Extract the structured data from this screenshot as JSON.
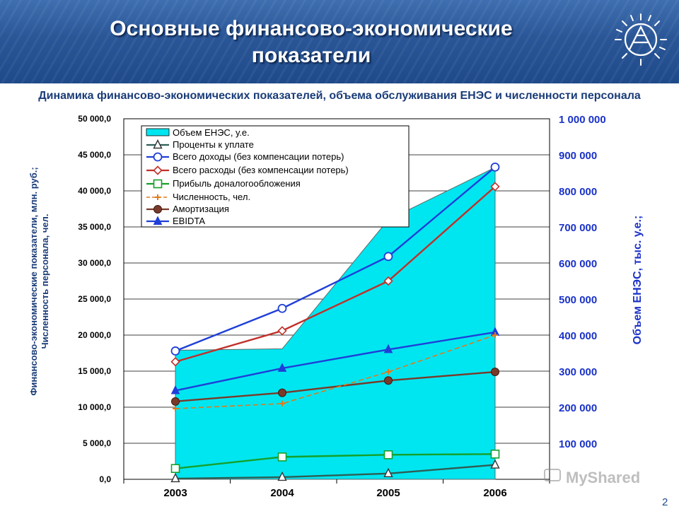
{
  "slide": {
    "title_line1": "Основные финансово-экономические",
    "title_line2": "показатели",
    "page_number": "2"
  },
  "watermark": "MyShared",
  "chart_data": {
    "type": "line",
    "title": "Динамика финансово-экономических показателей, объема обслуживания ЕНЭС и численности персонала",
    "categories": [
      "2003",
      "2004",
      "2005",
      "2006"
    ],
    "ylabel": [
      "Финансово-экономические показатели, млн. руб.;",
      "Численность персонала, чел."
    ],
    "ylabel2": "Объем ЕНЭС, тыс. у.е.;",
    "ylim": [
      0,
      50000
    ],
    "ylim2": [
      0,
      1000000
    ],
    "yticks": [
      "0,0",
      "5 000,0",
      "10 000,0",
      "15 000,0",
      "20 000,0",
      "25 000,0",
      "30 000,0",
      "35 000,0",
      "40 000,0",
      "45 000,0",
      "50 000,0"
    ],
    "yticks2": [
      "100 000",
      "200 000",
      "300 000",
      "400 000",
      "500 000",
      "600 000",
      "700 000",
      "800 000",
      "900 000",
      "1 000 000"
    ],
    "grid": true,
    "legend_position": "top-left",
    "area": {
      "name": "Объем ЕНЭС, у.е.",
      "axis": "right",
      "color": "#00e6f0",
      "values": [
        358000,
        362000,
        720000,
        865000
      ]
    },
    "series": [
      {
        "name": "Проценты к уплате",
        "color": "#2e5e55",
        "marker": "triangle-open",
        "values": [
          100,
          300,
          800,
          2000
        ]
      },
      {
        "name": "Всего доходы (без компенсации потерь)",
        "color": "#1f3fd8",
        "marker": "circle-open",
        "values": [
          17800,
          23700,
          30900,
          43300
        ]
      },
      {
        "name": "Всего расходы (без компенсации потерь)",
        "color": "#c0302a",
        "marker": "diamond-open",
        "values": [
          16300,
          20600,
          27500,
          40600
        ]
      },
      {
        "name": "Прибыль доналогообложения",
        "color": "#15a02a",
        "marker": "square-open",
        "values": [
          1500,
          3100,
          3400,
          3500
        ]
      },
      {
        "name": "Численность, чел.",
        "color": "#e07a1a",
        "marker": "plus",
        "dashed": true,
        "values": [
          9800,
          10500,
          14900,
          20000
        ]
      },
      {
        "name": "Амортизация",
        "color": "#7a3a2a",
        "marker": "circle-filled",
        "values": [
          10800,
          12000,
          13700,
          14900
        ]
      },
      {
        "name": "EBIDTA",
        "color": "#1f3fd8",
        "marker": "triangle-filled",
        "values": [
          12300,
          15400,
          18000,
          20400
        ]
      }
    ]
  }
}
